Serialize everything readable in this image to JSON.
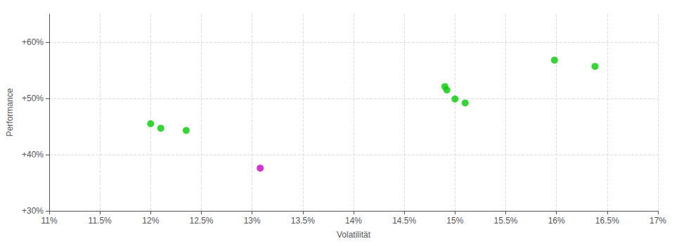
{
  "chart_data": {
    "type": "scatter",
    "xlabel": "Volatilität",
    "ylabel": "Performance",
    "xlim": [
      0.11,
      0.17
    ],
    "ylim": [
      0.3,
      0.65
    ],
    "xticks": [
      {
        "value": 0.11,
        "label": "11%"
      },
      {
        "value": 0.115,
        "label": "11.5%"
      },
      {
        "value": 0.12,
        "label": "12%"
      },
      {
        "value": 0.125,
        "label": "12.5%"
      },
      {
        "value": 0.13,
        "label": "13%"
      },
      {
        "value": 0.135,
        "label": "13.5%"
      },
      {
        "value": 0.14,
        "label": "14%"
      },
      {
        "value": 0.145,
        "label": "14.5%"
      },
      {
        "value": 0.15,
        "label": "15%"
      },
      {
        "value": 0.155,
        "label": "15.5%"
      },
      {
        "value": 0.16,
        "label": "16%"
      },
      {
        "value": 0.165,
        "label": "16.5%"
      },
      {
        "value": 0.17,
        "label": "17%"
      }
    ],
    "yticks": [
      {
        "value": 0.3,
        "label": "+30%"
      },
      {
        "value": 0.4,
        "label": "+40%"
      },
      {
        "value": 0.5,
        "label": "+50%"
      },
      {
        "value": 0.6,
        "label": "+60%"
      }
    ],
    "grid": true,
    "series": [
      {
        "color": "#00cc00",
        "x": [
          0.12,
          0.121,
          0.1235,
          0.149,
          0.1492,
          0.15,
          0.151,
          0.1598,
          0.1638
        ],
        "values": [
          0.455,
          0.447,
          0.443,
          0.521,
          0.515,
          0.499,
          0.492,
          0.568,
          0.557
        ]
      },
      {
        "color": "#cc00cc",
        "x": [
          0.1308
        ],
        "values": [
          0.376
        ]
      }
    ]
  }
}
